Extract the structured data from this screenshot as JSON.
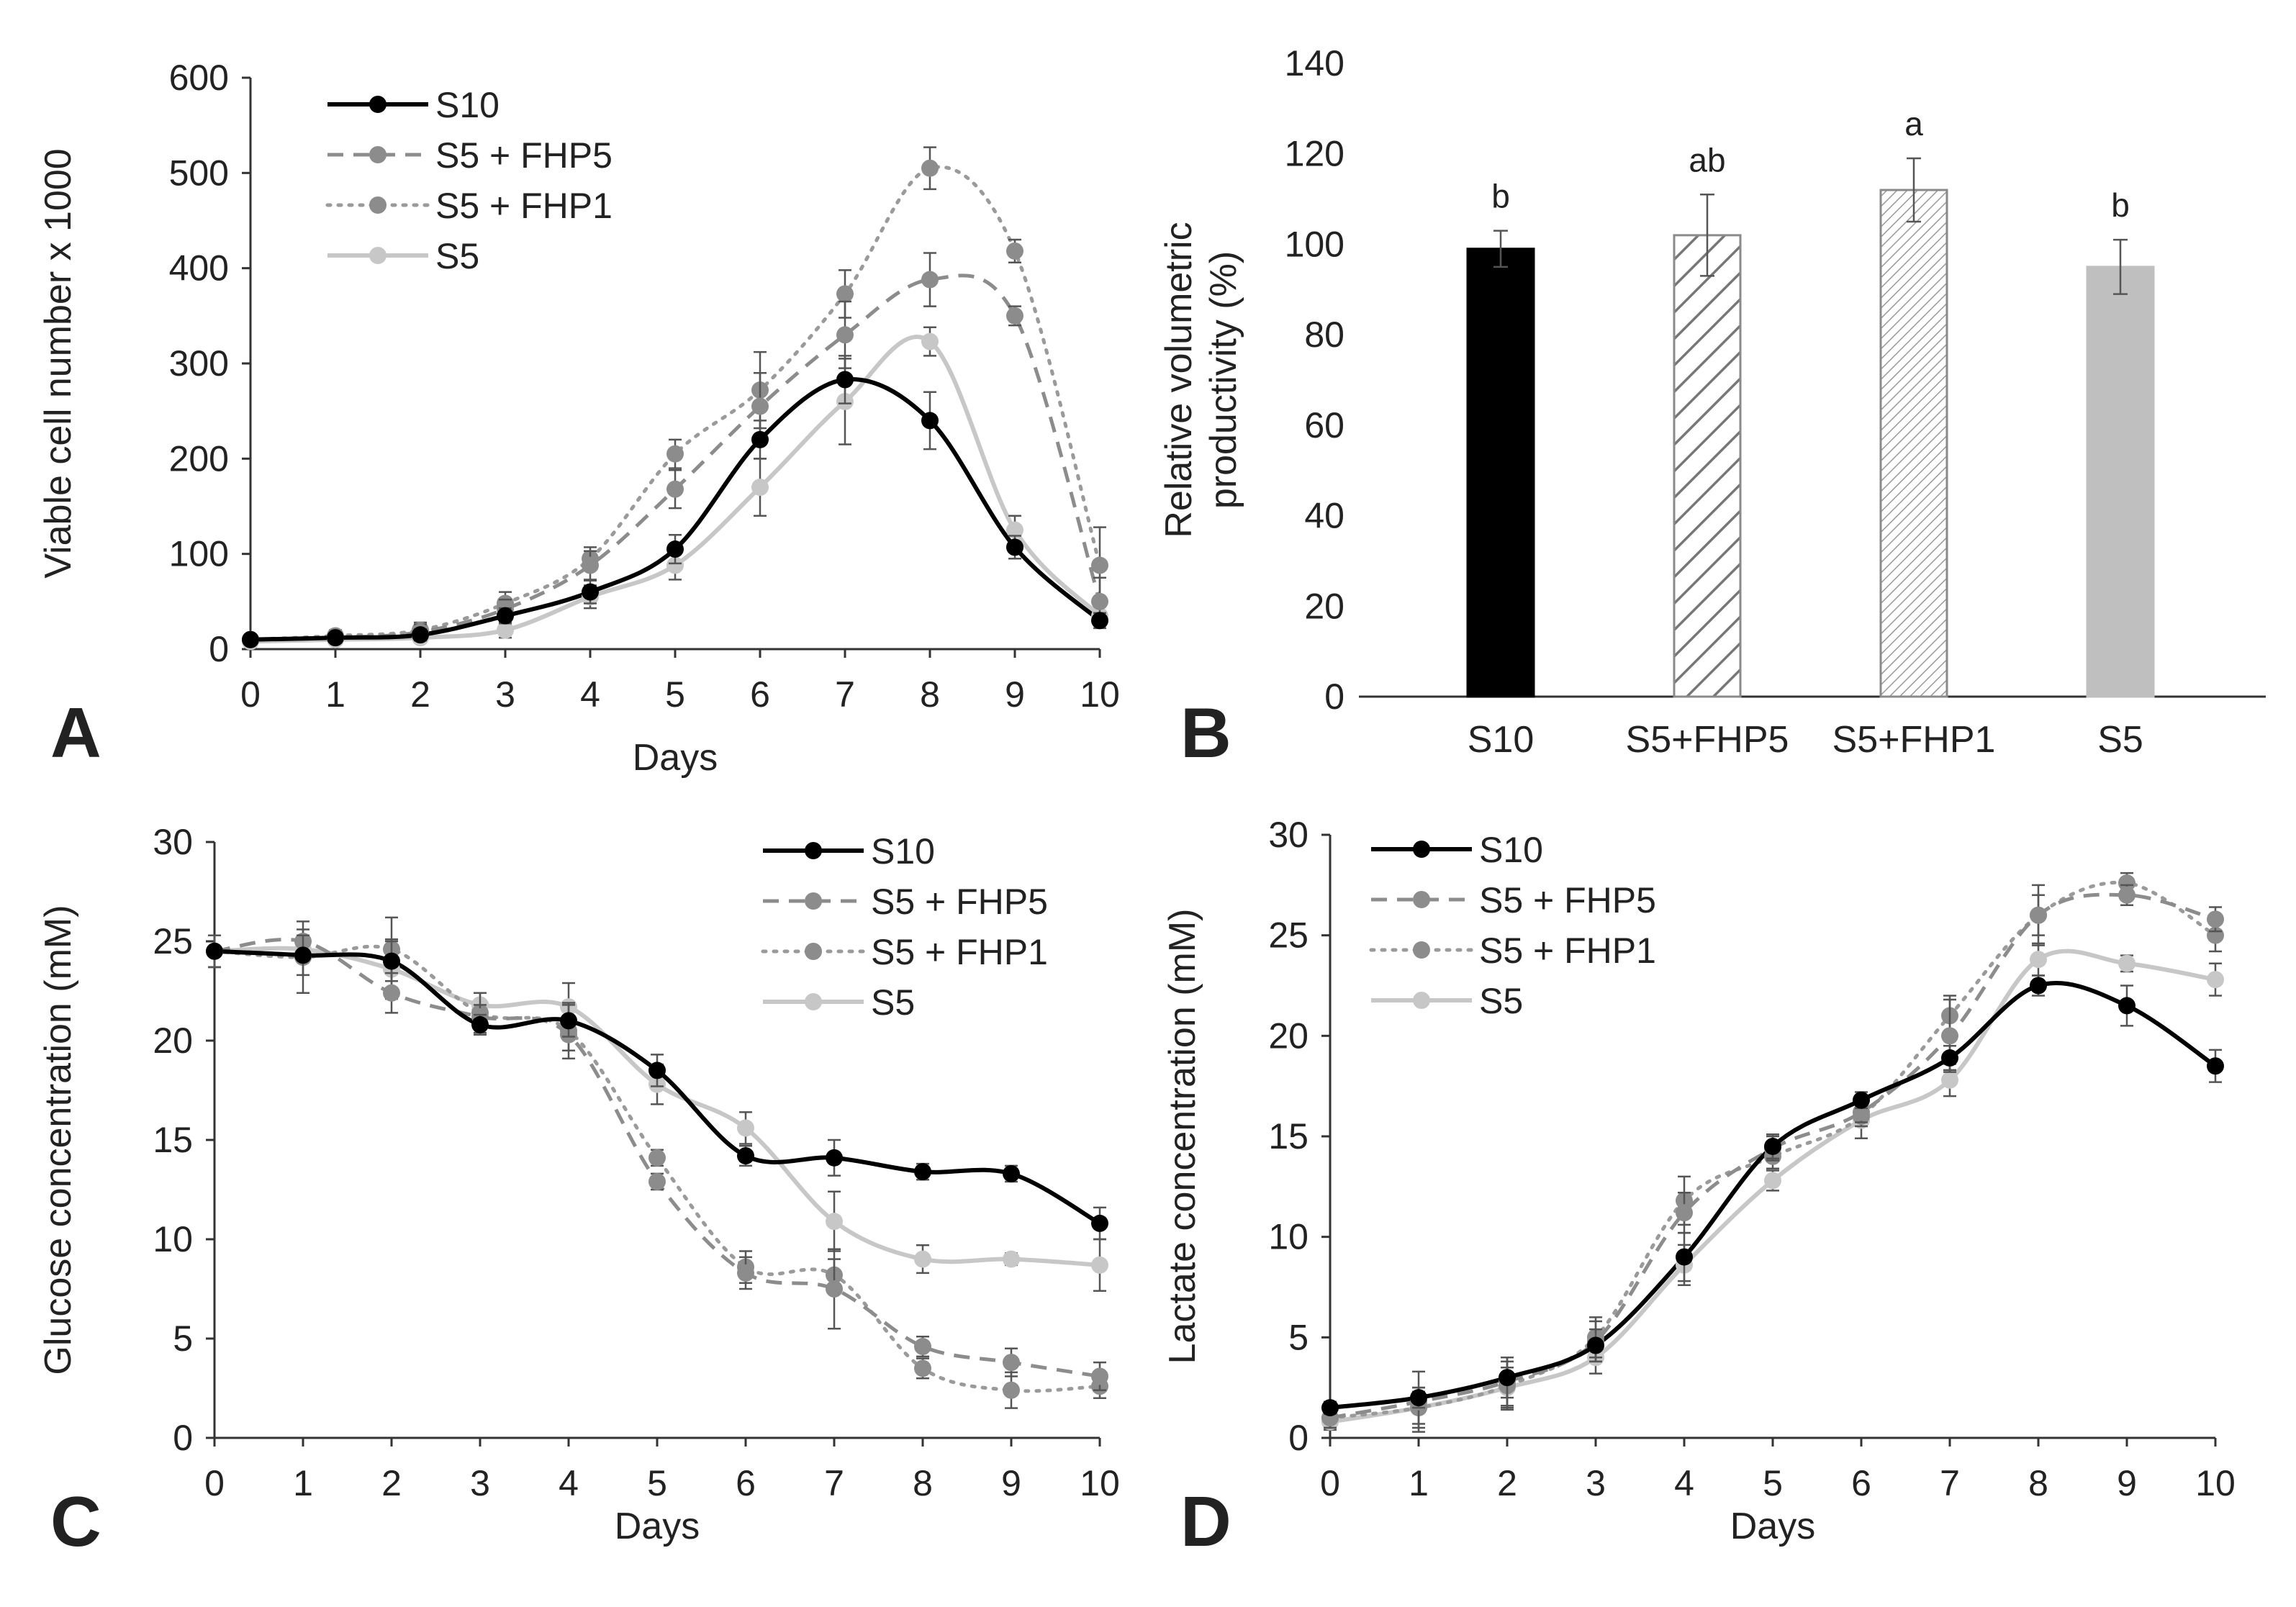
{
  "figure": {
    "styles": {
      "S10": {
        "color": "#000000",
        "dash": "",
        "width": 6
      },
      "S5 + FHP5": {
        "color": "#8c8c8c",
        "dash": "22,14",
        "width": 5
      },
      "S5 + FHP1": {
        "color": "#9a9a9a",
        "dash": "4,11",
        "width": 5
      },
      "S5": {
        "color": "#c7c7c7",
        "dash": "",
        "width": 6
      }
    },
    "bar_colors": [
      "#000000",
      "#ffffff",
      "#ffffff",
      "#bfbfbf"
    ],
    "bar_patterns": [
      "solid",
      "hatch-wide",
      "hatch-fine",
      "solid"
    ]
  },
  "chart_data": [
    {
      "panel": "A",
      "type": "line",
      "title": "",
      "xlabel": "Days",
      "ylabel": "Viable cell number x 1000",
      "x": [
        0,
        1,
        2,
        3,
        4,
        5,
        6,
        7,
        8,
        9,
        10
      ],
      "xlim": [
        0,
        10
      ],
      "ylim": [
        0,
        600
      ],
      "x_ticks": [
        "0",
        "1",
        "2",
        "3",
        "4",
        "5",
        "6",
        "7",
        "8",
        "9",
        "10"
      ],
      "y_ticks": [
        "0",
        "100",
        "200",
        "300",
        "400",
        "500",
        "600"
      ],
      "legend_position": "top-left",
      "series": [
        {
          "name": "S10",
          "values": [
            10,
            12,
            15,
            35,
            60,
            105,
            220,
            283,
            240,
            107,
            30
          ],
          "err": [
            4,
            5,
            6,
            8,
            12,
            15,
            20,
            25,
            30,
            12,
            8
          ]
        },
        {
          "name": "S5 + FHP5",
          "values": [
            10,
            12,
            18,
            42,
            88,
            168,
            255,
            330,
            388,
            350,
            50
          ],
          "err": [
            3,
            5,
            8,
            10,
            15,
            20,
            35,
            35,
            28,
            10,
            25
          ]
        },
        {
          "name": "S5 + FHP1",
          "values": [
            10,
            14,
            20,
            48,
            95,
            205,
            272,
            373,
            505,
            418,
            88
          ],
          "err": [
            4,
            6,
            8,
            12,
            12,
            15,
            40,
            25,
            22,
            12,
            40
          ]
        },
        {
          "name": "S5",
          "values": [
            8,
            10,
            12,
            20,
            55,
            88,
            170,
            260,
            323,
            125,
            35
          ],
          "err": [
            3,
            4,
            5,
            8,
            12,
            15,
            30,
            45,
            15,
            15,
            10
          ]
        }
      ]
    },
    {
      "panel": "B",
      "type": "bar",
      "title": "",
      "xlabel": "",
      "ylabel_lines": [
        "Relative volumetric",
        "productivity (%)"
      ],
      "categories": [
        "S10",
        "S5+FHP5",
        "S5+FHP1",
        "S5"
      ],
      "values": [
        99,
        102,
        112,
        95
      ],
      "err": [
        4,
        9,
        7,
        6
      ],
      "labels": [
        "b",
        "ab",
        "a",
        "b"
      ],
      "ylim": [
        0,
        140
      ],
      "y_ticks": [
        "0",
        "20",
        "40",
        "60",
        "80",
        "100",
        "120",
        "140"
      ]
    },
    {
      "panel": "C",
      "type": "line",
      "title": "",
      "xlabel": "Days",
      "ylabel": "Glucose concentration (mM)",
      "x": [
        0,
        1,
        2,
        3,
        4,
        5,
        6,
        7,
        8,
        9,
        10
      ],
      "xlim": [
        0,
        10
      ],
      "ylim": [
        0,
        30
      ],
      "x_ticks": [
        "0",
        "1",
        "2",
        "3",
        "4",
        "5",
        "6",
        "7",
        "8",
        "9",
        "10"
      ],
      "y_ticks": [
        "0",
        "5",
        "10",
        "15",
        "20",
        "25",
        "30"
      ],
      "legend_position": "top-right",
      "series": [
        {
          "name": "S10",
          "values": [
            24.5,
            24.3,
            24.0,
            20.8,
            21.0,
            18.5,
            14.2,
            14.1,
            13.4,
            13.3,
            10.8
          ],
          "err": [
            0.8,
            1.0,
            1.0,
            0.5,
            0.8,
            0.8,
            0.5,
            0.9,
            0.4,
            0.4,
            0.8
          ]
        },
        {
          "name": "S5 + FHP5",
          "values": [
            24.5,
            25.0,
            22.4,
            21.2,
            20.3,
            12.9,
            8.3,
            7.5,
            4.6,
            3.8,
            3.1
          ],
          "err": [
            0.8,
            0.6,
            1.0,
            0.6,
            0.8,
            0.4,
            0.8,
            2.0,
            0.5,
            0.7,
            0.7
          ]
        },
        {
          "name": "S5 + FHP1",
          "values": [
            24.5,
            24.2,
            24.6,
            21.4,
            20.5,
            14.1,
            8.6,
            8.2,
            3.5,
            2.4,
            2.6
          ],
          "err": [
            0.8,
            1.8,
            1.6,
            1.0,
            1.4,
            0.4,
            0.8,
            0.8,
            0.5,
            0.9,
            0.6
          ]
        },
        {
          "name": "S5",
          "values": [
            24.5,
            24.6,
            23.6,
            21.8,
            21.7,
            17.8,
            15.6,
            10.9,
            9.0,
            9.0,
            8.7
          ],
          "err": [
            0.8,
            0.6,
            1.5,
            0.6,
            1.2,
            1.0,
            0.8,
            1.5,
            0.7,
            0.3,
            1.3
          ]
        }
      ]
    },
    {
      "panel": "D",
      "type": "line",
      "title": "",
      "xlabel": "Days",
      "ylabel": "Lactate concentration (mM)",
      "x": [
        0,
        1,
        2,
        3,
        4,
        5,
        6,
        7,
        8,
        9,
        10
      ],
      "xlim": [
        0,
        10
      ],
      "ylim": [
        0,
        30
      ],
      "x_ticks": [
        "0",
        "1",
        "2",
        "3",
        "4",
        "5",
        "6",
        "7",
        "8",
        "9",
        "10"
      ],
      "y_ticks": [
        "0",
        "5",
        "10",
        "15",
        "20",
        "25",
        "30"
      ],
      "legend_position": "top-left",
      "series": [
        {
          "name": "S10",
          "values": [
            1.5,
            2.0,
            3.0,
            4.6,
            9.0,
            14.5,
            16.8,
            18.9,
            22.5,
            21.5,
            18.5
          ],
          "err": [
            0.3,
            0.5,
            1.0,
            0.8,
            1.2,
            0.6,
            0.4,
            0.6,
            0.5,
            1.0,
            0.8
          ]
        },
        {
          "name": "S5 + FHP5",
          "values": [
            1.0,
            1.8,
            2.8,
            4.8,
            11.2,
            14.4,
            16.2,
            20.0,
            26.0,
            27.0,
            25.8
          ],
          "err": [
            0.5,
            1.5,
            1.2,
            1.0,
            1.0,
            0.6,
            0.5,
            1.8,
            1.5,
            0.5,
            0.6
          ]
        },
        {
          "name": "S5 + FHP1",
          "values": [
            1.0,
            1.5,
            2.6,
            5.0,
            11.8,
            14.0,
            16.0,
            21.0,
            26.0,
            27.6,
            25.0
          ],
          "err": [
            0.5,
            1.0,
            1.2,
            1.0,
            1.2,
            0.6,
            0.5,
            1.0,
            1.0,
            0.5,
            0.8
          ]
        },
        {
          "name": "S5",
          "values": [
            0.8,
            1.5,
            2.5,
            4.0,
            8.6,
            12.8,
            15.8,
            17.8,
            23.8,
            23.6,
            22.8
          ],
          "err": [
            0.4,
            0.8,
            1.0,
            0.8,
            1.0,
            0.5,
            0.9,
            0.8,
            0.8,
            0.4,
            0.8
          ]
        }
      ]
    }
  ]
}
